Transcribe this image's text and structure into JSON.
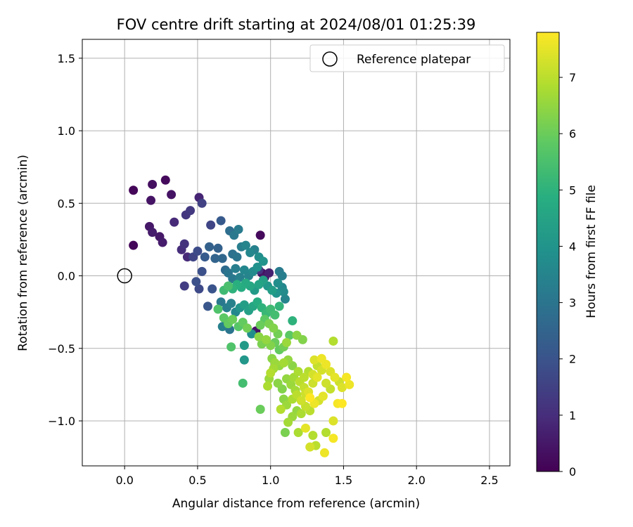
{
  "chart_data": {
    "type": "scatter",
    "title": "FOV centre drift starting at 2024/08/01 01:25:39",
    "xlabel": "Angular distance from reference (arcmin)",
    "ylabel": "Rotation from reference (arcmin)",
    "xlim": [
      -0.29,
      2.64
    ],
    "ylim": [
      -1.31,
      1.63
    ],
    "xticks": [
      0.0,
      0.5,
      1.0,
      1.5,
      2.0,
      2.5
    ],
    "xtick_labels": [
      "0.0",
      "0.5",
      "1.0",
      "1.5",
      "2.0",
      "2.5"
    ],
    "yticks": [
      -1.0,
      -0.5,
      0.0,
      0.5,
      1.0,
      1.5
    ],
    "ytick_labels": [
      "−1.0",
      "−0.5",
      "0.0",
      "0.5",
      "1.0",
      "1.5"
    ],
    "grid": true,
    "legend": {
      "placement": "top-right",
      "entries": [
        "Reference platepar"
      ]
    },
    "colorbar": {
      "label": "Hours from first FF file",
      "colormap": "viridis",
      "range": [
        0,
        7.8
      ],
      "ticks": [
        0,
        1,
        2,
        3,
        4,
        5,
        6,
        7
      ],
      "tick_labels": [
        "0",
        "1",
        "2",
        "3",
        "4",
        "5",
        "6",
        "7"
      ]
    },
    "reference_point": {
      "label": "Reference platepar",
      "x": 0.0,
      "y": 0.0
    },
    "series": [
      {
        "points": [
          [
            0.06,
            0.59,
            0.1
          ],
          [
            0.06,
            0.21,
            0.1
          ],
          [
            0.19,
            0.63,
            0.3
          ],
          [
            0.18,
            0.52,
            0.4
          ],
          [
            0.28,
            0.66,
            0.2
          ],
          [
            0.32,
            0.56,
            0.4
          ],
          [
            0.17,
            0.34,
            0.5
          ],
          [
            0.19,
            0.3,
            0.6
          ],
          [
            0.24,
            0.27,
            0.5
          ],
          [
            0.26,
            0.23,
            0.6
          ],
          [
            0.34,
            0.37,
            0.9
          ],
          [
            0.39,
            0.18,
            1.0
          ],
          [
            0.41,
            0.22,
            1.1
          ],
          [
            0.42,
            0.42,
            1.2
          ],
          [
            0.45,
            0.45,
            1.3
          ],
          [
            0.43,
            0.13,
            0.9
          ],
          [
            0.41,
            -0.07,
            1.4
          ],
          [
            0.51,
            0.54,
            0.8
          ],
          [
            0.53,
            0.5,
            1.5
          ],
          [
            0.47,
            0.13,
            1.6
          ],
          [
            0.5,
            0.17,
            1.8
          ],
          [
            0.49,
            -0.04,
            1.9
          ],
          [
            0.51,
            -0.09,
            1.7
          ],
          [
            0.53,
            0.03,
            1.9
          ],
          [
            0.57,
            -0.21,
            2.1
          ],
          [
            0.59,
            0.35,
            1.6
          ],
          [
            0.6,
            -0.09,
            2.0
          ],
          [
            0.55,
            0.13,
            2.2
          ],
          [
            0.58,
            0.2,
            2.4
          ],
          [
            0.66,
            0.38,
            2.2
          ],
          [
            0.64,
            0.19,
            2.4
          ],
          [
            0.62,
            0.12,
            2.5
          ],
          [
            0.67,
            0.12,
            2.6
          ],
          [
            0.69,
            0.04,
            2.7
          ],
          [
            0.72,
            0.31,
            2.8
          ],
          [
            0.75,
            0.28,
            3.1
          ],
          [
            0.78,
            0.32,
            3.2
          ],
          [
            0.93,
            0.28,
            0.2
          ],
          [
            0.74,
            0.15,
            2.9
          ],
          [
            0.77,
            0.13,
            3.0
          ],
          [
            0.8,
            0.2,
            3.3
          ],
          [
            0.83,
            0.21,
            3.5
          ],
          [
            0.86,
            0.16,
            3.6
          ],
          [
            0.89,
            0.18,
            3.4
          ],
          [
            0.92,
            0.13,
            3.8
          ],
          [
            0.95,
            0.1,
            4.0
          ],
          [
            0.71,
            0.02,
            3.0
          ],
          [
            0.74,
            -0.02,
            3.1
          ],
          [
            0.76,
            0.05,
            3.3
          ],
          [
            0.79,
            -0.01,
            3.4
          ],
          [
            0.82,
            0.04,
            3.6
          ],
          [
            0.85,
            0.0,
            3.5
          ],
          [
            0.88,
            0.03,
            3.7
          ],
          [
            0.91,
            0.06,
            3.9
          ],
          [
            0.94,
            0.02,
            0.3
          ],
          [
            0.96,
            -0.01,
            0.5
          ],
          [
            0.99,
            0.02,
            0.7
          ],
          [
            0.92,
            0.04,
            1.2
          ],
          [
            1.06,
            0.03,
            3.2
          ],
          [
            1.08,
            0.0,
            3.3
          ],
          [
            1.05,
            -0.05,
            3.8
          ],
          [
            1.08,
            -0.08,
            3.6
          ],
          [
            1.09,
            -0.11,
            3.7
          ],
          [
            1.1,
            -0.16,
            3.5
          ],
          [
            1.04,
            -0.12,
            4.0
          ],
          [
            1.01,
            -0.1,
            4.3
          ],
          [
            0.98,
            -0.07,
            4.1
          ],
          [
            0.95,
            -0.03,
            4.4
          ],
          [
            0.92,
            -0.06,
            4.5
          ],
          [
            0.89,
            -0.1,
            4.2
          ],
          [
            0.86,
            -0.07,
            4.6
          ],
          [
            0.83,
            -0.05,
            4.7
          ],
          [
            0.8,
            -0.08,
            4.8
          ],
          [
            0.77,
            -0.06,
            4.9
          ],
          [
            0.74,
            -0.09,
            5.0
          ],
          [
            0.71,
            -0.07,
            5.5
          ],
          [
            0.68,
            -0.1,
            5.3
          ],
          [
            0.66,
            -0.18,
            3.1
          ],
          [
            0.64,
            -0.23,
            5.6
          ],
          [
            0.7,
            -0.22,
            3.3
          ],
          [
            0.73,
            -0.19,
            3.4
          ],
          [
            0.76,
            -0.25,
            3.6
          ],
          [
            0.79,
            -0.22,
            4.0
          ],
          [
            0.82,
            -0.2,
            4.3
          ],
          [
            0.85,
            -0.24,
            4.4
          ],
          [
            0.88,
            -0.21,
            4.6
          ],
          [
            0.91,
            -0.18,
            4.8
          ],
          [
            0.94,
            -0.22,
            5.0
          ],
          [
            0.97,
            -0.26,
            5.2
          ],
          [
            1.0,
            -0.23,
            5.3
          ],
          [
            1.03,
            -0.27,
            5.4
          ],
          [
            1.06,
            -0.21,
            5.1
          ],
          [
            0.68,
            -0.29,
            5.8
          ],
          [
            0.71,
            -0.33,
            5.9
          ],
          [
            0.74,
            -0.3,
            6.0
          ],
          [
            0.67,
            -0.35,
            3.4
          ],
          [
            0.72,
            -0.37,
            3.0
          ],
          [
            0.78,
            -0.35,
            5.7
          ],
          [
            0.81,
            -0.32,
            5.9
          ],
          [
            0.84,
            -0.36,
            6.1
          ],
          [
            0.87,
            -0.4,
            3.8
          ],
          [
            0.9,
            -0.38,
            0.4
          ],
          [
            0.93,
            -0.34,
            6.0
          ],
          [
            0.96,
            -0.3,
            5.8
          ],
          [
            0.99,
            -0.33,
            6.2
          ],
          [
            1.02,
            -0.36,
            6.3
          ],
          [
            1.05,
            -0.4,
            6.1
          ],
          [
            0.92,
            -0.42,
            6.4
          ],
          [
            0.94,
            -0.47,
            6.2
          ],
          [
            0.97,
            -0.44,
            6.5
          ],
          [
            1.0,
            -0.48,
            6.3
          ],
          [
            1.03,
            -0.46,
            6.0
          ],
          [
            0.82,
            -0.48,
            4.2
          ],
          [
            0.73,
            -0.49,
            5.6
          ],
          [
            0.82,
            -0.58,
            4.1
          ],
          [
            1.06,
            -0.51,
            5.9
          ],
          [
            1.09,
            -0.49,
            6.1
          ],
          [
            1.11,
            -0.46,
            6.6
          ],
          [
            1.13,
            -0.41,
            5.8
          ],
          [
            1.15,
            -0.31,
            5.0
          ],
          [
            1.18,
            -0.41,
            6.4
          ],
          [
            1.22,
            -0.44,
            6.3
          ],
          [
            1.01,
            -0.57,
            6.4
          ],
          [
            1.03,
            -0.6,
            6.6
          ],
          [
            1.06,
            -0.62,
            6.5
          ],
          [
            1.09,
            -0.6,
            6.7
          ],
          [
            1.12,
            -0.58,
            6.5
          ],
          [
            1.15,
            -0.62,
            6.4
          ],
          [
            1.02,
            -0.64,
            6.7
          ],
          [
            1.0,
            -0.67,
            6.9
          ],
          [
            0.99,
            -0.71,
            6.6
          ],
          [
            0.98,
            -0.76,
            6.8
          ],
          [
            0.81,
            -0.74,
            5.4
          ],
          [
            1.05,
            -0.74,
            6.4
          ],
          [
            1.08,
            -0.78,
            6.3
          ],
          [
            1.11,
            -0.71,
            6.5
          ],
          [
            1.14,
            -0.75,
            6.6
          ],
          [
            1.17,
            -0.79,
            6.7
          ],
          [
            1.2,
            -0.73,
            7.0
          ],
          [
            1.23,
            -0.77,
            7.1
          ],
          [
            1.26,
            -0.8,
            7.4
          ],
          [
            1.29,
            -0.74,
            7.2
          ],
          [
            1.32,
            -0.7,
            7.5
          ],
          [
            1.35,
            -0.65,
            7.3
          ],
          [
            1.38,
            -0.61,
            7.6
          ],
          [
            1.41,
            -0.66,
            7.4
          ],
          [
            1.43,
            -0.45,
            6.9
          ],
          [
            1.44,
            -0.7,
            7.5
          ],
          [
            1.47,
            -0.73,
            7.2
          ],
          [
            1.49,
            -0.77,
            7.4
          ],
          [
            1.52,
            -0.7,
            7.7
          ],
          [
            1.54,
            -0.75,
            7.6
          ],
          [
            1.46,
            -0.88,
            7.7
          ],
          [
            1.49,
            -0.88,
            7.8
          ],
          [
            1.43,
            -1.0,
            7.4
          ],
          [
            1.43,
            -1.12,
            7.7
          ],
          [
            1.38,
            -1.08,
            6.9
          ],
          [
            1.37,
            -1.22,
            7.6
          ],
          [
            1.31,
            -1.17,
            7.0
          ],
          [
            1.27,
            -1.18,
            7.3
          ],
          [
            1.29,
            -1.1,
            6.9
          ],
          [
            1.24,
            -1.05,
            7.5
          ],
          [
            1.19,
            -1.08,
            6.8
          ],
          [
            1.1,
            -1.08,
            6.2
          ],
          [
            1.12,
            -1.01,
            6.7
          ],
          [
            1.15,
            -0.97,
            6.6
          ],
          [
            1.18,
            -0.93,
            6.5
          ],
          [
            1.21,
            -0.95,
            6.8
          ],
          [
            1.24,
            -0.9,
            7.1
          ],
          [
            1.27,
            -0.93,
            7.0
          ],
          [
            1.3,
            -0.88,
            7.6
          ],
          [
            1.33,
            -0.86,
            7.3
          ],
          [
            1.36,
            -0.83,
            7.5
          ],
          [
            1.27,
            -0.84,
            7.8
          ],
          [
            1.24,
            -0.81,
            7.2
          ],
          [
            1.09,
            -0.85,
            6.4
          ],
          [
            1.11,
            -0.89,
            6.6
          ],
          [
            1.07,
            -0.92,
            6.9
          ],
          [
            0.93,
            -0.92,
            6.0
          ],
          [
            1.15,
            -0.85,
            6.8
          ],
          [
            1.18,
            -0.82,
            7.0
          ],
          [
            1.21,
            -0.86,
            7.2
          ],
          [
            1.3,
            -0.58,
            7.4
          ],
          [
            1.32,
            -0.62,
            7.1
          ],
          [
            1.35,
            -0.57,
            7.6
          ],
          [
            1.26,
            -0.66,
            6.9
          ],
          [
            1.29,
            -0.68,
            7.3
          ],
          [
            1.23,
            -0.7,
            7.0
          ],
          [
            1.19,
            -0.66,
            6.8
          ],
          [
            1.16,
            -0.7,
            6.7
          ],
          [
            1.38,
            -0.74,
            7.2
          ],
          [
            1.41,
            -0.78,
            7.1
          ]
        ]
      }
    ]
  }
}
